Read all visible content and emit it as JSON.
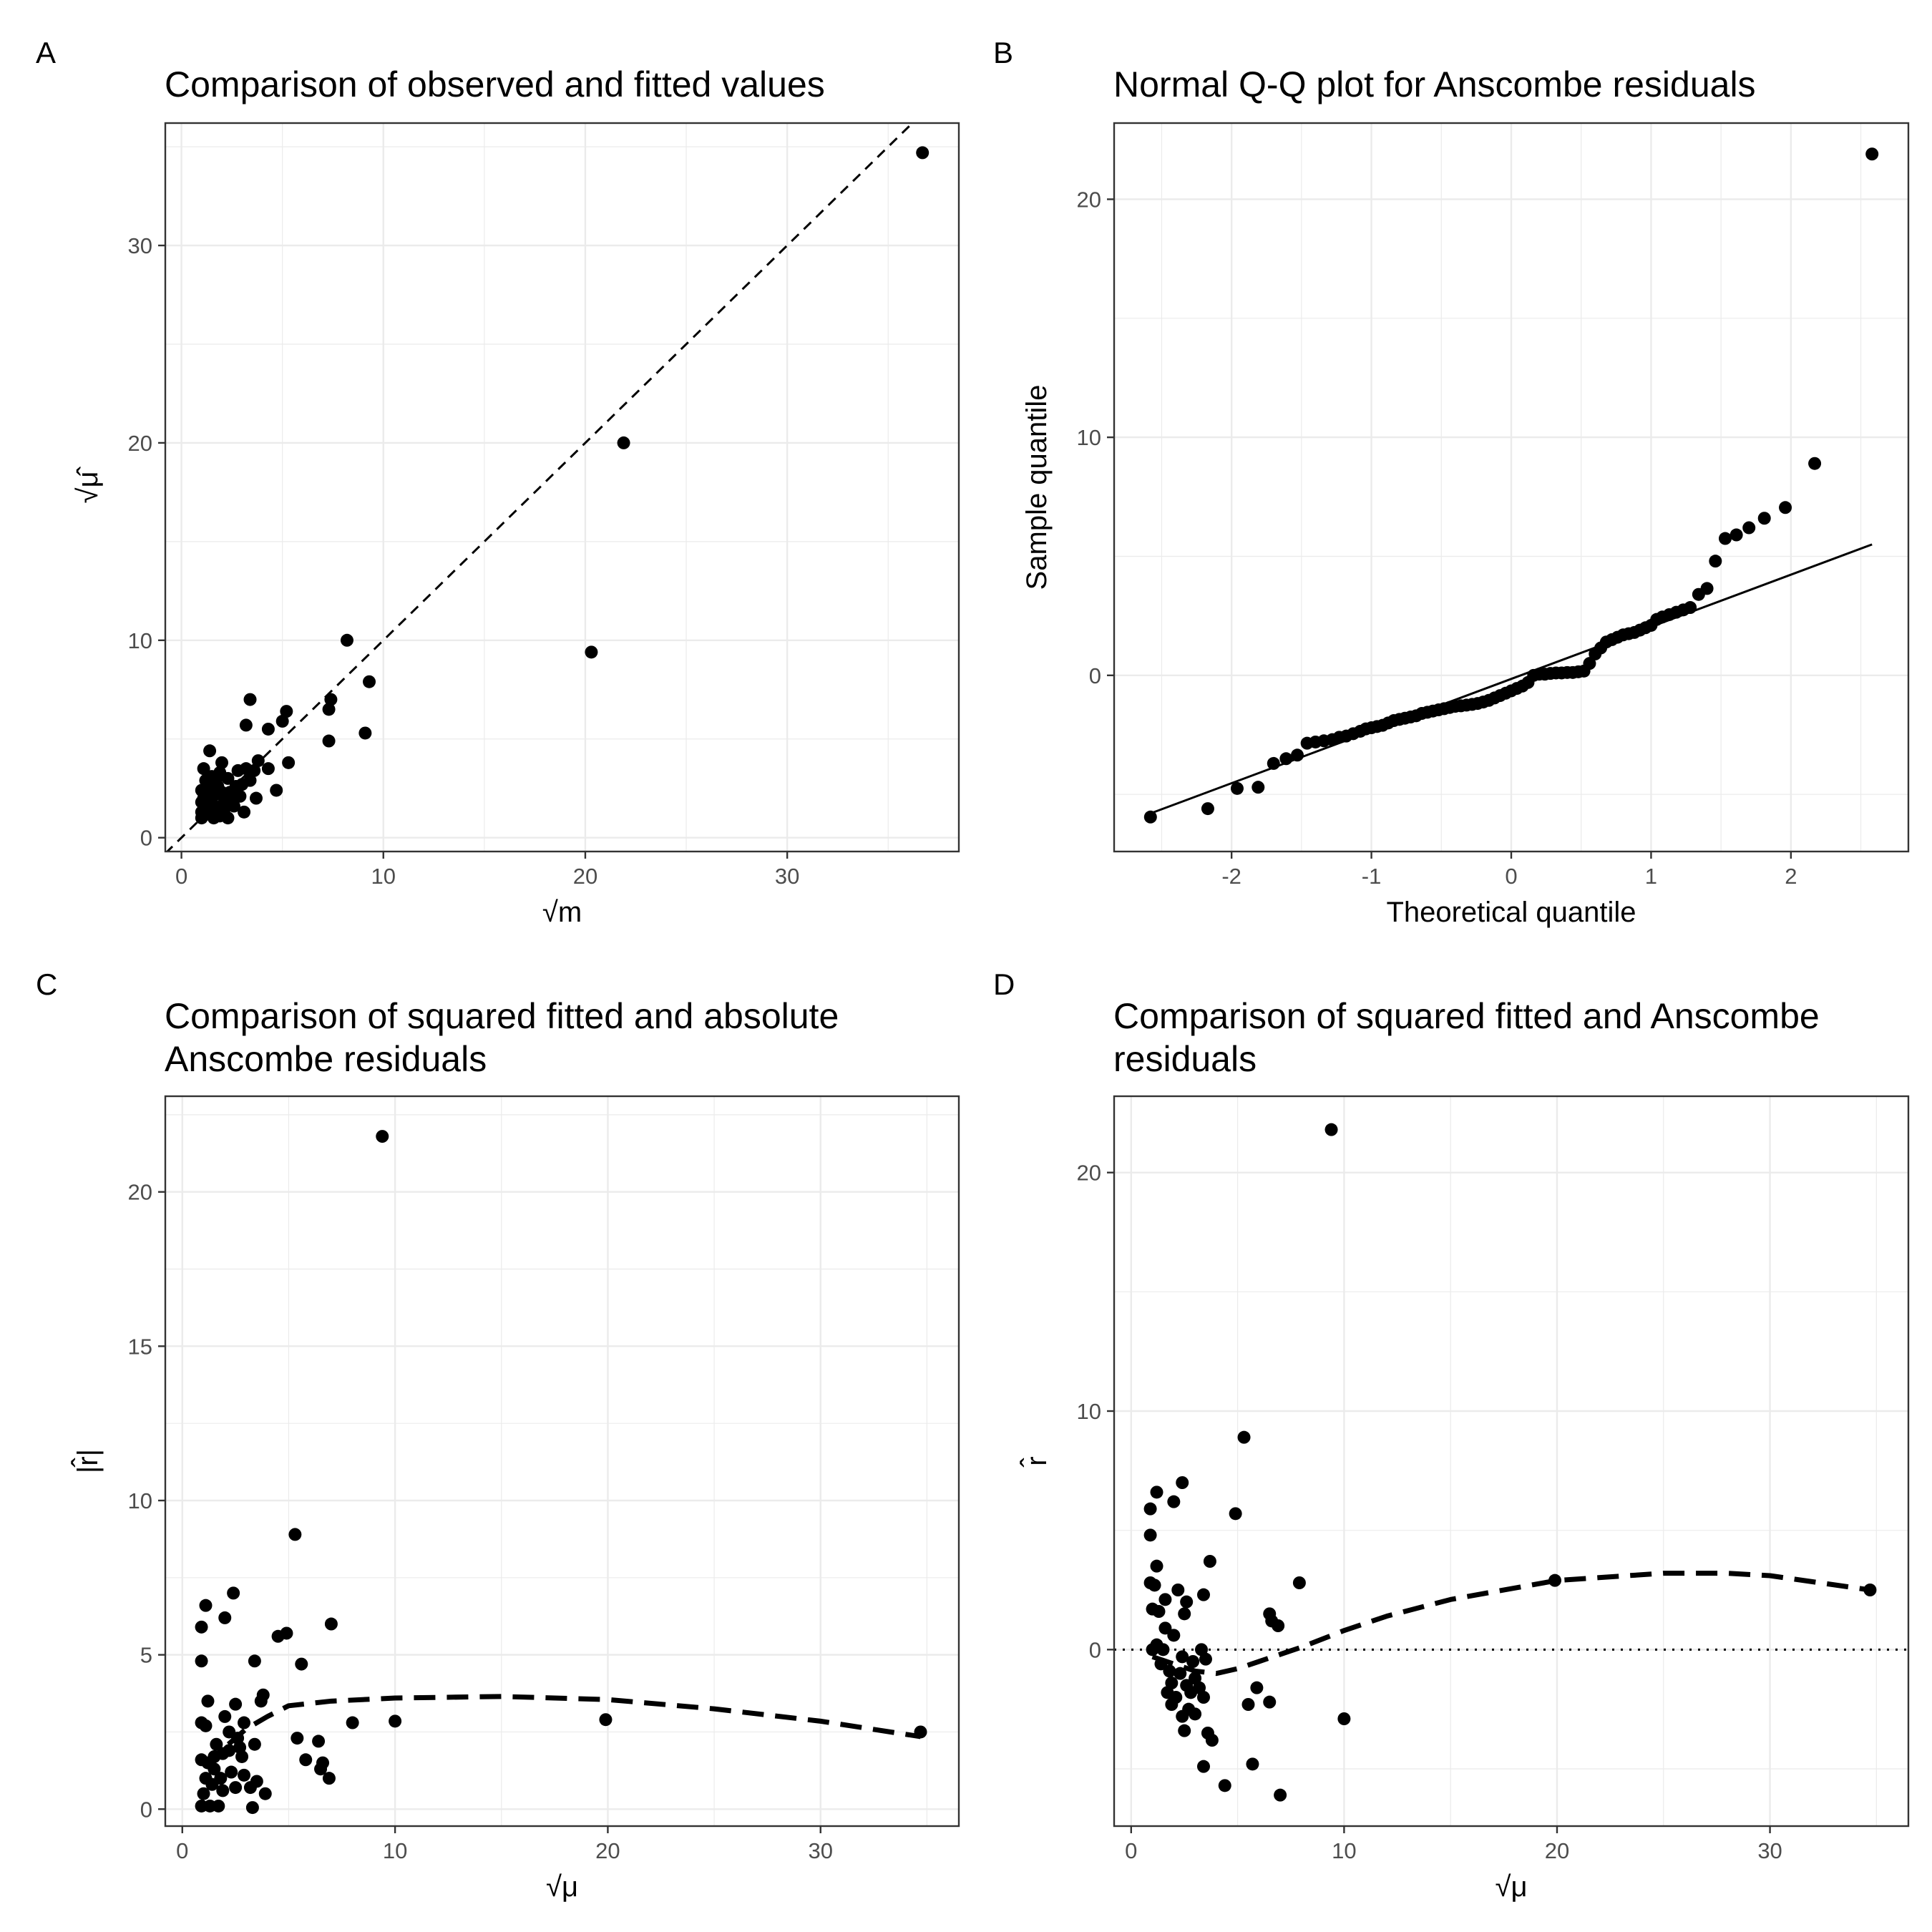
{
  "chart_data": [
    {
      "id": "A",
      "panel_label": "A",
      "type": "scatter",
      "title": [
        "Comparison of observed and fitted values"
      ],
      "xlabel": "√m",
      "ylabel": "√μ̂",
      "xlim": [
        -0.8,
        38.5
      ],
      "ylim": [
        -0.7,
        36.2
      ],
      "x_ticks": [
        0,
        10,
        20,
        30
      ],
      "y_ticks": [
        0,
        10,
        20,
        30
      ],
      "reference_line": {
        "style": "dashed",
        "description": "y = x"
      },
      "points": [
        [
          36.7,
          34.7
        ],
        [
          21.9,
          20.0
        ],
        [
          20.3,
          9.4
        ],
        [
          8.2,
          10.0
        ],
        [
          9.3,
          7.9
        ],
        [
          9.1,
          5.3
        ],
        [
          7.4,
          7.0
        ],
        [
          7.3,
          6.5
        ],
        [
          7.3,
          4.9
        ],
        [
          5.2,
          6.4
        ],
        [
          5.0,
          5.9
        ],
        [
          5.3,
          3.8
        ],
        [
          3.4,
          7.0
        ],
        [
          4.3,
          5.5
        ],
        [
          4.7,
          2.4
        ],
        [
          4.3,
          3.5
        ],
        [
          3.8,
          3.9
        ],
        [
          3.7,
          2.0
        ],
        [
          3.6,
          3.4
        ],
        [
          3.2,
          5.7
        ],
        [
          3.2,
          3.5
        ],
        [
          3.4,
          2.9
        ],
        [
          3.0,
          2.7
        ],
        [
          3.1,
          1.3
        ],
        [
          2.8,
          3.4
        ],
        [
          2.7,
          2.6
        ],
        [
          2.5,
          2.0
        ],
        [
          2.3,
          3.0
        ],
        [
          2.2,
          1.8
        ],
        [
          2.3,
          1.0
        ],
        [
          2.0,
          3.8
        ],
        [
          1.9,
          3.3
        ],
        [
          1.8,
          2.6
        ],
        [
          1.7,
          2.2
        ],
        [
          1.8,
          1.5
        ],
        [
          1.9,
          1.1
        ],
        [
          1.4,
          4.4
        ],
        [
          1.5,
          3.1
        ],
        [
          1.4,
          2.4
        ],
        [
          1.5,
          2.0
        ],
        [
          1.4,
          1.6
        ],
        [
          1.3,
          1.2
        ],
        [
          1.2,
          2.9
        ],
        [
          1.1,
          2.0
        ],
        [
          1.2,
          1.5
        ],
        [
          1.0,
          2.4
        ],
        [
          1.0,
          1.8
        ],
        [
          1.0,
          1.3
        ],
        [
          1.0,
          1.0
        ],
        [
          1.1,
          3.5
        ],
        [
          1.6,
          1.0
        ],
        [
          2.1,
          1.3
        ],
        [
          2.6,
          1.6
        ],
        [
          1.7,
          2.9
        ],
        [
          2.4,
          2.3
        ],
        [
          2.9,
          2.1
        ],
        [
          1.3,
          1.9
        ],
        [
          2.0,
          2.3
        ]
      ]
    },
    {
      "id": "B",
      "panel_label": "B",
      "type": "scatter",
      "title": [
        "Normal Q-Q plot for Anscombe residuals"
      ],
      "xlabel": "Theoretical quantile",
      "ylabel": "Sample quantile",
      "xlim": [
        -2.84,
        2.84
      ],
      "ylim": [
        -7.4,
        23.2
      ],
      "x_ticks": [
        -2,
        -1,
        0,
        1,
        2
      ],
      "y_ticks": [
        0,
        10,
        20
      ],
      "reference_line": {
        "style": "solid",
        "x1": -2.58,
        "y1": -5.8,
        "x2": 2.58,
        "y2": 5.5
      },
      "points": [
        [
          -2.58,
          -5.95
        ],
        [
          -2.17,
          -5.6
        ],
        [
          -1.96,
          -4.75
        ],
        [
          -1.81,
          -4.7
        ],
        [
          -1.7,
          -3.7
        ],
        [
          -1.61,
          -3.5
        ],
        [
          -1.53,
          -3.35
        ],
        [
          -1.46,
          -2.85
        ],
        [
          -1.4,
          -2.8
        ],
        [
          -1.34,
          -2.75
        ],
        [
          -1.28,
          -2.7
        ],
        [
          -1.23,
          -2.6
        ],
        [
          -1.18,
          -2.55
        ],
        [
          -1.13,
          -2.45
        ],
        [
          -1.08,
          -2.35
        ],
        [
          -1.04,
          -2.25
        ],
        [
          -1.0,
          -2.2
        ],
        [
          -0.96,
          -2.15
        ],
        [
          -0.92,
          -2.1
        ],
        [
          -0.88,
          -2.0
        ],
        [
          -0.84,
          -1.9
        ],
        [
          -0.8,
          -1.85
        ],
        [
          -0.76,
          -1.8
        ],
        [
          -0.72,
          -1.75
        ],
        [
          -0.68,
          -1.7
        ],
        [
          -0.64,
          -1.6
        ],
        [
          -0.6,
          -1.55
        ],
        [
          -0.56,
          -1.5
        ],
        [
          -0.52,
          -1.45
        ],
        [
          -0.48,
          -1.4
        ],
        [
          -0.44,
          -1.35
        ],
        [
          -0.4,
          -1.3
        ],
        [
          -0.36,
          -1.28
        ],
        [
          -0.32,
          -1.25
        ],
        [
          -0.28,
          -1.22
        ],
        [
          -0.24,
          -1.18
        ],
        [
          -0.2,
          -1.12
        ],
        [
          -0.16,
          -1.05
        ],
        [
          -0.12,
          -0.95
        ],
        [
          -0.08,
          -0.85
        ],
        [
          -0.04,
          -0.75
        ],
        [
          0.0,
          -0.65
        ],
        [
          0.04,
          -0.55
        ],
        [
          0.08,
          -0.45
        ],
        [
          0.12,
          -0.3
        ],
        [
          0.16,
          0.0
        ],
        [
          0.2,
          0.05
        ],
        [
          0.24,
          0.05
        ],
        [
          0.28,
          0.08
        ],
        [
          0.32,
          0.1
        ],
        [
          0.36,
          0.1
        ],
        [
          0.4,
          0.12
        ],
        [
          0.44,
          0.12
        ],
        [
          0.48,
          0.15
        ],
        [
          0.52,
          0.18
        ],
        [
          0.56,
          0.5
        ],
        [
          0.6,
          0.9
        ],
        [
          0.64,
          1.15
        ],
        [
          0.68,
          1.4
        ],
        [
          0.72,
          1.5
        ],
        [
          0.76,
          1.6
        ],
        [
          0.8,
          1.7
        ],
        [
          0.84,
          1.75
        ],
        [
          0.88,
          1.8
        ],
        [
          0.92,
          1.9
        ],
        [
          0.96,
          2.0
        ],
        [
          1.0,
          2.1
        ],
        [
          1.04,
          2.35
        ],
        [
          1.08,
          2.45
        ],
        [
          1.13,
          2.55
        ],
        [
          1.18,
          2.65
        ],
        [
          1.23,
          2.75
        ],
        [
          1.28,
          2.85
        ],
        [
          1.34,
          3.4
        ],
        [
          1.4,
          3.65
        ],
        [
          1.46,
          4.8
        ],
        [
          1.53,
          5.75
        ],
        [
          1.61,
          5.9
        ],
        [
          1.7,
          6.2
        ],
        [
          1.81,
          6.6
        ],
        [
          1.96,
          7.05
        ],
        [
          2.17,
          8.9
        ],
        [
          2.58,
          21.9
        ]
      ]
    },
    {
      "id": "C",
      "panel_label": "C",
      "type": "scatter",
      "title": [
        "Comparison of squared fitted and absolute",
        "Anscombe residuals"
      ],
      "xlabel": "√μ",
      "ylabel": "|r̂|",
      "xlim": [
        -0.8,
        36.5
      ],
      "ylim": [
        -0.55,
        23.1
      ],
      "x_ticks": [
        0,
        10,
        20,
        30
      ],
      "y_ticks": [
        0,
        5,
        10,
        15,
        20
      ],
      "smoother": {
        "style": "dashed",
        "x": [
          1.0,
          2.0,
          3.0,
          4.0,
          5.0,
          7.0,
          10.0,
          15.0,
          20.0,
          25.0,
          30.0,
          34.7
        ],
        "y": [
          1.4,
          2.0,
          2.6,
          3.0,
          3.35,
          3.5,
          3.6,
          3.65,
          3.55,
          3.25,
          2.85,
          2.35
        ]
      },
      "points": [
        [
          9.4,
          21.8
        ],
        [
          5.3,
          8.9
        ],
        [
          2.4,
          7.0
        ],
        [
          1.1,
          6.6
        ],
        [
          2.0,
          6.2
        ],
        [
          7.0,
          6.0
        ],
        [
          0.9,
          5.9
        ],
        [
          4.9,
          5.7
        ],
        [
          4.5,
          5.6
        ],
        [
          5.6,
          4.7
        ],
        [
          0.9,
          4.8
        ],
        [
          3.4,
          4.8
        ],
        [
          3.8,
          3.7
        ],
        [
          3.7,
          3.5
        ],
        [
          1.2,
          3.5
        ],
        [
          2.5,
          3.4
        ],
        [
          2.0,
          3.0
        ],
        [
          8.0,
          2.8
        ],
        [
          10.0,
          2.85
        ],
        [
          19.9,
          2.9
        ],
        [
          34.7,
          2.5
        ],
        [
          0.9,
          2.8
        ],
        [
          1.1,
          2.7
        ],
        [
          2.9,
          2.8
        ],
        [
          2.2,
          2.5
        ],
        [
          5.4,
          2.3
        ],
        [
          6.4,
          2.2
        ],
        [
          3.4,
          2.1
        ],
        [
          2.7,
          2.0
        ],
        [
          1.6,
          2.1
        ],
        [
          1.9,
          1.8
        ],
        [
          2.8,
          1.7
        ],
        [
          5.8,
          1.6
        ],
        [
          6.6,
          1.5
        ],
        [
          6.5,
          1.3
        ],
        [
          0.9,
          1.6
        ],
        [
          1.2,
          1.5
        ],
        [
          1.5,
          1.3
        ],
        [
          2.3,
          1.2
        ],
        [
          1.8,
          1.0
        ],
        [
          1.1,
          1.0
        ],
        [
          2.9,
          1.1
        ],
        [
          3.5,
          0.9
        ],
        [
          6.9,
          1.0
        ],
        [
          1.4,
          0.8
        ],
        [
          2.5,
          0.7
        ],
        [
          3.9,
          0.5
        ],
        [
          1.0,
          0.5
        ],
        [
          1.9,
          0.6
        ],
        [
          3.2,
          0.7
        ],
        [
          0.9,
          0.1
        ],
        [
          1.3,
          0.1
        ],
        [
          1.7,
          0.1
        ],
        [
          3.3,
          0.05
        ],
        [
          2.2,
          1.9
        ],
        [
          1.5,
          1.7
        ],
        [
          2.6,
          2.3
        ]
      ]
    },
    {
      "id": "D",
      "panel_label": "D",
      "type": "scatter",
      "title": [
        "Comparison of squared fitted and Anscombe",
        "residuals"
      ],
      "xlabel": "√μ",
      "ylabel": "r̂",
      "xlim": [
        -0.8,
        36.5
      ],
      "ylim": [
        -7.4,
        23.2
      ],
      "x_ticks": [
        0,
        10,
        20,
        30
      ],
      "y_ticks": [
        0,
        10,
        20
      ],
      "zero_line": {
        "style": "dotted",
        "y": 0
      },
      "smoother": {
        "style": "dashed",
        "x": [
          1.0,
          2.0,
          3.0,
          4.0,
          5.0,
          6.0,
          7.0,
          8.0,
          10.0,
          12.0,
          15.0,
          20.0,
          25.0,
          28.0,
          30.0,
          34.7
        ],
        "y": [
          -0.3,
          -0.6,
          -0.9,
          -1.0,
          -0.8,
          -0.5,
          -0.2,
          0.1,
          0.8,
          1.4,
          2.1,
          2.9,
          3.2,
          3.2,
          3.1,
          2.5
        ]
      },
      "points": [
        [
          9.4,
          21.8
        ],
        [
          5.3,
          8.9
        ],
        [
          2.4,
          7.0
        ],
        [
          1.2,
          6.6
        ],
        [
          2.0,
          6.2
        ],
        [
          0.9,
          5.9
        ],
        [
          4.9,
          5.7
        ],
        [
          0.9,
          4.8
        ],
        [
          3.7,
          3.7
        ],
        [
          1.2,
          3.5
        ],
        [
          0.9,
          2.8
        ],
        [
          1.1,
          2.7
        ],
        [
          7.9,
          2.8
        ],
        [
          19.9,
          2.9
        ],
        [
          34.7,
          2.5
        ],
        [
          2.2,
          2.5
        ],
        [
          3.4,
          2.3
        ],
        [
          1.6,
          2.1
        ],
        [
          2.6,
          2.0
        ],
        [
          1.0,
          1.7
        ],
        [
          1.3,
          1.6
        ],
        [
          2.5,
          1.5
        ],
        [
          6.5,
          1.5
        ],
        [
          6.6,
          1.2
        ],
        [
          6.9,
          1.0
        ],
        [
          1.6,
          0.9
        ],
        [
          2.0,
          0.6
        ],
        [
          1.2,
          0.2
        ],
        [
          1.0,
          0.0
        ],
        [
          1.5,
          0.0
        ],
        [
          3.3,
          0.0
        ],
        [
          2.4,
          -0.3
        ],
        [
          3.5,
          -0.4
        ],
        [
          1.4,
          -0.6
        ],
        [
          2.9,
          -0.5
        ],
        [
          1.8,
          -0.9
        ],
        [
          2.3,
          -1.0
        ],
        [
          3.0,
          -1.2
        ],
        [
          1.9,
          -1.4
        ],
        [
          2.6,
          -1.5
        ],
        [
          3.2,
          -1.6
        ],
        [
          1.7,
          -1.8
        ],
        [
          2.8,
          -1.8
        ],
        [
          2.1,
          -2.0
        ],
        [
          3.4,
          -2.0
        ],
        [
          1.9,
          -2.3
        ],
        [
          5.9,
          -1.6
        ],
        [
          6.5,
          -2.2
        ],
        [
          5.5,
          -2.3
        ],
        [
          2.7,
          -2.5
        ],
        [
          3.0,
          -2.7
        ],
        [
          2.4,
          -2.8
        ],
        [
          3.6,
          -3.5
        ],
        [
          2.5,
          -3.4
        ],
        [
          3.8,
          -3.8
        ],
        [
          10.0,
          -2.9
        ],
        [
          3.4,
          -4.9
        ],
        [
          5.7,
          -4.8
        ],
        [
          4.4,
          -5.7
        ],
        [
          7.0,
          -6.1
        ]
      ]
    }
  ]
}
